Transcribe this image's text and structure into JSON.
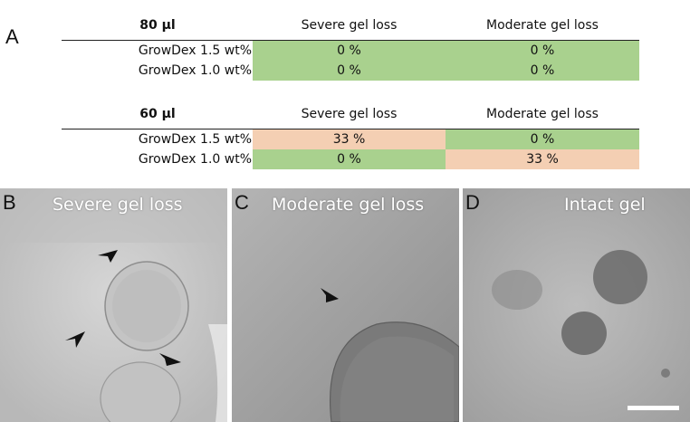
{
  "panel_a": {
    "letter": "A",
    "tables": [
      {
        "condition": "80 µl",
        "col1": "Severe gel loss",
        "col2": "Moderate gel loss",
        "rows": [
          {
            "label": "GrowDex 1.5 wt%",
            "v1": "0 %",
            "v2": "0 %"
          },
          {
            "label": "GrowDex 1.0 wt%",
            "v1": "0 %",
            "v2": "0 %"
          }
        ]
      },
      {
        "condition": "60 µl",
        "col1": "Severe gel loss",
        "col2": "Moderate gel loss",
        "rows": [
          {
            "label": "GrowDex 1.5 wt%",
            "v1": "33 %",
            "v2": "0 %"
          },
          {
            "label": "GrowDex 1.0 wt%",
            "v1": "0 %",
            "v2": "33 %"
          }
        ]
      }
    ],
    "colors": {
      "zero": "#a9d18e",
      "nonzero": "#f4cfb3"
    }
  },
  "panels": [
    {
      "letter": "B",
      "title": "Severe gel loss"
    },
    {
      "letter": "C",
      "title": "Moderate gel loss"
    },
    {
      "letter": "D",
      "title": "Intact gel"
    }
  ]
}
